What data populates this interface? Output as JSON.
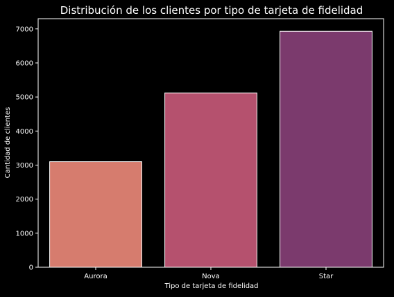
{
  "chart_data": {
    "type": "bar",
    "title": "Distribución de los clientes por tipo de tarjeta de fidelidad",
    "xlabel": "Tipo de tarjeta de fidelidad",
    "ylabel": "Cantidad de clientes",
    "categories": [
      "Aurora",
      "Nova",
      "Star"
    ],
    "values": [
      3100,
      5120,
      6930
    ],
    "ylim": [
      0,
      7300
    ],
    "yticks": [
      0,
      1000,
      2000,
      3000,
      4000,
      5000,
      6000,
      7000
    ],
    "grid": false,
    "bar_colors": [
      "#d67c6e",
      "#b5516e",
      "#7b3a6d"
    ],
    "bar_edge_color": "#ffffff",
    "background": "#000000"
  }
}
